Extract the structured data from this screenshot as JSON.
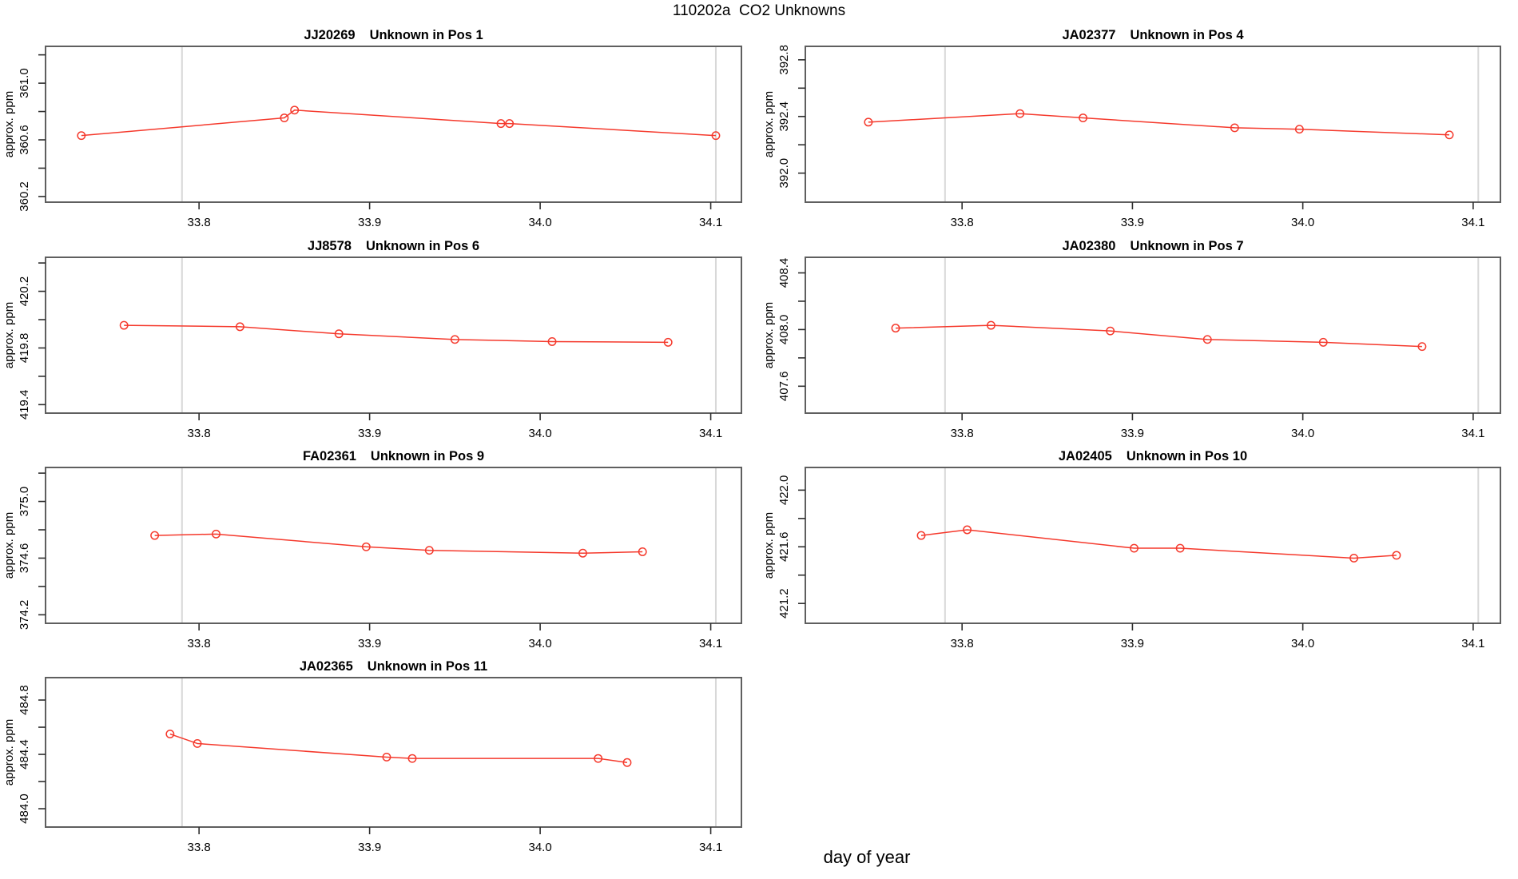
{
  "title": "110202a  CO2 Unknowns",
  "x_axis_label": "day of year",
  "colors": {
    "series": "#f5392c",
    "guide_line": "#d8d8d8",
    "box": "#5f5f5f",
    "tick": "#2e2e2e",
    "text": "#000000",
    "background": "#ffffff"
  },
  "x_ticks": {
    "values": [
      33.8,
      33.9,
      34.0,
      34.1
    ],
    "labels": [
      "33.8",
      "33.9",
      "34.0",
      "34.1"
    ]
  },
  "guide_lines_x": [
    33.79,
    34.103
  ],
  "chart_data": [
    {
      "type": "line",
      "sample": "JJ20269",
      "position_label": "Unknown in Pos 1",
      "title": "JJ20269   Unknown in Pos 1",
      "ylabel": "approx. ppm",
      "grid": {
        "row": 0,
        "col": 0
      },
      "x": [
        33.731,
        33.85,
        33.856,
        33.977,
        33.982,
        34.103
      ],
      "y": [
        360.63,
        360.755,
        360.81,
        360.715,
        360.715,
        360.63
      ],
      "ylim": [
        360.16,
        361.26
      ],
      "xlim": [
        33.71,
        34.118
      ],
      "ytick_step": 0.2,
      "ytick_labels": [
        "360.2",
        "360.6",
        "361.0"
      ]
    },
    {
      "type": "line",
      "sample": "JA02377",
      "position_label": "Unknown in Pos 4",
      "title": "JA02377   Unknown in Pos 4",
      "ylabel": "approx. ppm",
      "grid": {
        "row": 0,
        "col": 1
      },
      "x": [
        33.745,
        33.834,
        33.871,
        33.96,
        33.998,
        34.086
      ],
      "y": [
        392.36,
        392.42,
        392.39,
        392.32,
        392.31,
        392.27
      ],
      "ylim": [
        391.795,
        392.895
      ],
      "xlim": [
        33.708,
        34.116
      ],
      "ytick_step": 0.2,
      "ytick_labels": [
        "392.0",
        "392.4",
        "392.8"
      ]
    },
    {
      "type": "line",
      "sample": "JJ8578",
      "position_label": "Unknown in Pos 6",
      "title": "JJ8578   Unknown in Pos 6",
      "ylabel": "approx. ppm",
      "grid": {
        "row": 1,
        "col": 0
      },
      "x": [
        33.756,
        33.824,
        33.882,
        33.95,
        34.007,
        34.075
      ],
      "y": [
        419.96,
        419.95,
        419.9,
        419.86,
        419.845,
        419.84
      ],
      "ylim": [
        419.34,
        420.44
      ],
      "xlim": [
        33.71,
        34.118
      ],
      "ytick_step": 0.2,
      "ytick_labels": [
        "419.4",
        "419.8",
        "420.2"
      ]
    },
    {
      "type": "line",
      "sample": "JA02380",
      "position_label": "Unknown in Pos 7",
      "title": "JA02380   Unknown in Pos 7",
      "ylabel": "approx. ppm",
      "grid": {
        "row": 1,
        "col": 1
      },
      "x": [
        33.761,
        33.817,
        33.887,
        33.944,
        34.012,
        34.07
      ],
      "y": [
        408.01,
        408.03,
        407.99,
        407.93,
        407.91,
        407.88
      ],
      "ylim": [
        407.41,
        408.51
      ],
      "xlim": [
        33.708,
        34.116
      ],
      "ytick_step": 0.2,
      "ytick_labels": [
        "407.6",
        "408.0",
        "408.4"
      ]
    },
    {
      "type": "line",
      "sample": "FA02361",
      "position_label": "Unknown in Pos 9",
      "title": "FA02361   Unknown in Pos 9",
      "ylabel": "approx. ppm",
      "grid": {
        "row": 2,
        "col": 0
      },
      "x": [
        33.774,
        33.81,
        33.898,
        33.935,
        34.025,
        34.06
      ],
      "y": [
        374.76,
        374.77,
        374.68,
        374.655,
        374.635,
        374.645
      ],
      "ylim": [
        374.14,
        375.24
      ],
      "xlim": [
        33.71,
        34.118
      ],
      "ytick_step": 0.2,
      "ytick_labels": [
        "374.2",
        "374.6",
        "375.0"
      ]
    },
    {
      "type": "line",
      "sample": "JA02405",
      "position_label": "Unknown in Pos 10",
      "title": "JA02405   Unknown in Pos 10",
      "ylabel": "approx. ppm",
      "grid": {
        "row": 2,
        "col": 1
      },
      "x": [
        33.776,
        33.803,
        33.901,
        33.928,
        34.03,
        34.055
      ],
      "y": [
        421.68,
        421.72,
        421.59,
        421.59,
        421.52,
        421.54
      ],
      "ylim": [
        421.06,
        422.16
      ],
      "xlim": [
        33.708,
        34.116
      ],
      "ytick_step": 0.2,
      "ytick_labels": [
        "421.2",
        "421.6",
        "422.0"
      ]
    },
    {
      "type": "line",
      "sample": "JA02365",
      "position_label": "Unknown in Pos 11",
      "title": "JA02365   Unknown in Pos 11",
      "ylabel": "approx. ppm",
      "grid": {
        "row": 3,
        "col": 0
      },
      "x": [
        33.783,
        33.799,
        33.91,
        33.925,
        34.034,
        34.051
      ],
      "y": [
        484.55,
        484.48,
        484.38,
        484.37,
        484.37,
        484.34
      ],
      "ylim": [
        483.865,
        484.965
      ],
      "xlim": [
        33.71,
        34.118
      ],
      "ytick_step": 0.2,
      "ytick_labels": [
        "484.0",
        "484.4",
        "484.8"
      ]
    }
  ]
}
